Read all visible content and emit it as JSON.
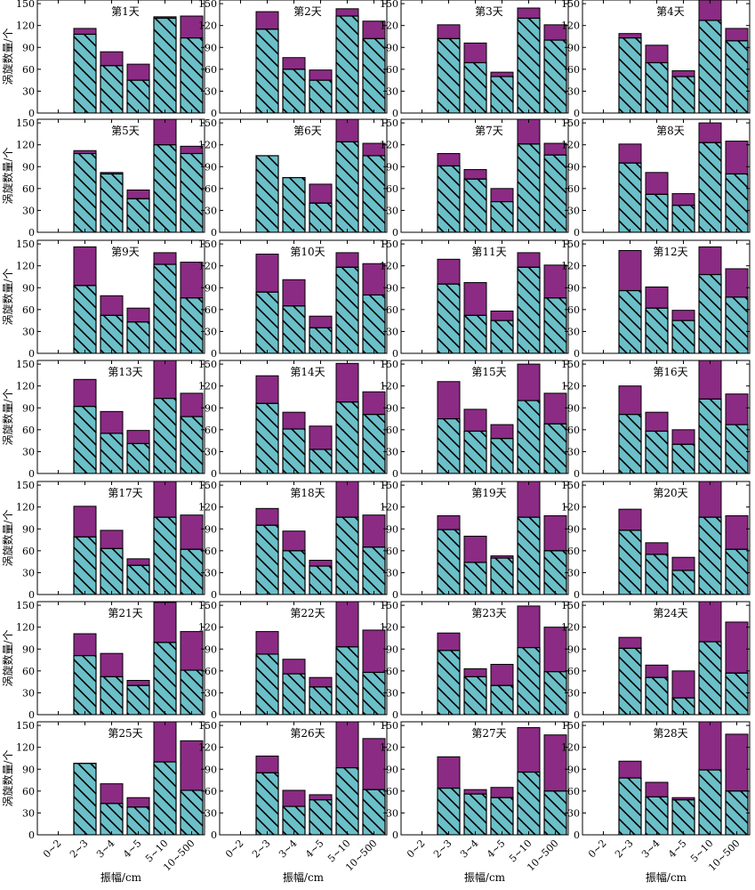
{
  "chart_data": {
    "type": "bar",
    "stacked": true,
    "layout": "7x4 grid",
    "categories": [
      "0~2",
      "2~3",
      "3~4",
      "4~5",
      "5~10",
      "10~500"
    ],
    "ylabel": "涡旋数量/个",
    "xlabel": "振幅/cm",
    "ylim": [
      0,
      155
    ],
    "yticks": [
      0,
      30,
      60,
      90,
      120,
      150
    ],
    "colors": {
      "lower": "#6bbfc8",
      "upper": "#8b2b84",
      "hatch": "#000000",
      "edge": "#000000"
    },
    "panels": [
      {
        "title": "第1天",
        "lower": [
          0,
          108,
          65,
          45,
          130,
          103
        ],
        "total": [
          0,
          116,
          84,
          67,
          132,
          133
        ]
      },
      {
        "title": "第2天",
        "lower": [
          0,
          115,
          60,
          45,
          133,
          102
        ],
        "total": [
          0,
          139,
          76,
          59,
          143,
          126
        ]
      },
      {
        "title": "第3天",
        "lower": [
          0,
          102,
          69,
          50,
          130,
          100
        ],
        "total": [
          0,
          121,
          96,
          56,
          144,
          121
        ]
      },
      {
        "title": "第4天",
        "lower": [
          0,
          103,
          69,
          50,
          127,
          99
        ],
        "total": [
          0,
          109,
          93,
          58,
          155,
          116
        ]
      },
      {
        "title": "第5天",
        "lower": [
          0,
          108,
          80,
          46,
          120,
          108
        ],
        "total": [
          0,
          112,
          82,
          58,
          160,
          118
        ]
      },
      {
        "title": "第6天",
        "lower": [
          0,
          105,
          75,
          40,
          124,
          105
        ],
        "total": [
          0,
          105,
          75,
          66,
          160,
          122
        ]
      },
      {
        "title": "第7天",
        "lower": [
          0,
          91,
          73,
          42,
          121,
          106
        ],
        "total": [
          0,
          108,
          86,
          60,
          157,
          122
        ]
      },
      {
        "title": "第8天",
        "lower": [
          0,
          95,
          52,
          37,
          123,
          80
        ],
        "total": [
          0,
          121,
          82,
          53,
          150,
          125
        ]
      },
      {
        "title": "第9天",
        "lower": [
          0,
          93,
          52,
          43,
          122,
          76
        ],
        "total": [
          0,
          146,
          79,
          62,
          138,
          125
        ]
      },
      {
        "title": "第10天",
        "lower": [
          0,
          84,
          65,
          35,
          118,
          80
        ],
        "total": [
          0,
          136,
          101,
          51,
          138,
          123
        ]
      },
      {
        "title": "第11天",
        "lower": [
          0,
          95,
          52,
          45,
          118,
          76
        ],
        "total": [
          0,
          129,
          97,
          58,
          138,
          121
        ]
      },
      {
        "title": "第12天",
        "lower": [
          0,
          86,
          62,
          45,
          108,
          77
        ],
        "total": [
          0,
          141,
          91,
          59,
          146,
          116
        ]
      },
      {
        "title": "第13天",
        "lower": [
          0,
          92,
          55,
          41,
          103,
          78
        ],
        "total": [
          0,
          129,
          85,
          59,
          155,
          110
        ]
      },
      {
        "title": "第14天",
        "lower": [
          0,
          96,
          61,
          33,
          98,
          81
        ],
        "total": [
          0,
          134,
          84,
          65,
          151,
          112
        ]
      },
      {
        "title": "第15天",
        "lower": [
          0,
          75,
          58,
          48,
          100,
          68
        ],
        "total": [
          0,
          126,
          88,
          67,
          150,
          110
        ]
      },
      {
        "title": "第16天",
        "lower": [
          0,
          81,
          58,
          40,
          102,
          67
        ],
        "total": [
          0,
          120,
          84,
          60,
          156,
          109
        ]
      },
      {
        "title": "第17天",
        "lower": [
          0,
          79,
          63,
          40,
          106,
          62
        ],
        "total": [
          0,
          121,
          88,
          49,
          160,
          109
        ]
      },
      {
        "title": "第18天",
        "lower": [
          0,
          95,
          60,
          39,
          106,
          65
        ],
        "total": [
          0,
          118,
          87,
          47,
          155,
          109
        ]
      },
      {
        "title": "第19天",
        "lower": [
          0,
          89,
          44,
          50,
          106,
          60
        ],
        "total": [
          0,
          108,
          80,
          53,
          160,
          108
        ]
      },
      {
        "title": "第20天",
        "lower": [
          0,
          88,
          55,
          33,
          106,
          62
        ],
        "total": [
          0,
          117,
          71,
          51,
          160,
          108
        ]
      },
      {
        "title": "第21天",
        "lower": [
          0,
          81,
          52,
          40,
          99,
          61
        ],
        "total": [
          0,
          111,
          84,
          47,
          154,
          114
        ]
      },
      {
        "title": "第22天",
        "lower": [
          0,
          83,
          56,
          38,
          93,
          58
        ],
        "total": [
          0,
          114,
          76,
          51,
          160,
          116
        ]
      },
      {
        "title": "第23天",
        "lower": [
          0,
          88,
          52,
          40,
          92,
          59
        ],
        "total": [
          0,
          112,
          63,
          69,
          149,
          120
        ]
      },
      {
        "title": "第24天",
        "lower": [
          0,
          91,
          51,
          23,
          100,
          57
        ],
        "total": [
          0,
          106,
          68,
          60,
          155,
          127
        ]
      },
      {
        "title": "第25天",
        "lower": [
          0,
          98,
          43,
          38,
          100,
          61
        ],
        "total": [
          0,
          98,
          70,
          51,
          160,
          129
        ]
      },
      {
        "title": "第26天",
        "lower": [
          0,
          85,
          39,
          48,
          92,
          62
        ],
        "total": [
          0,
          108,
          61,
          55,
          160,
          132
        ]
      },
      {
        "title": "第27天",
        "lower": [
          0,
          64,
          56,
          51,
          86,
          60
        ],
        "total": [
          0,
          107,
          62,
          65,
          147,
          137
        ]
      },
      {
        "title": "第28天",
        "lower": [
          0,
          78,
          52,
          48,
          89,
          60
        ],
        "total": [
          0,
          101,
          72,
          51,
          156,
          138
        ]
      }
    ]
  }
}
